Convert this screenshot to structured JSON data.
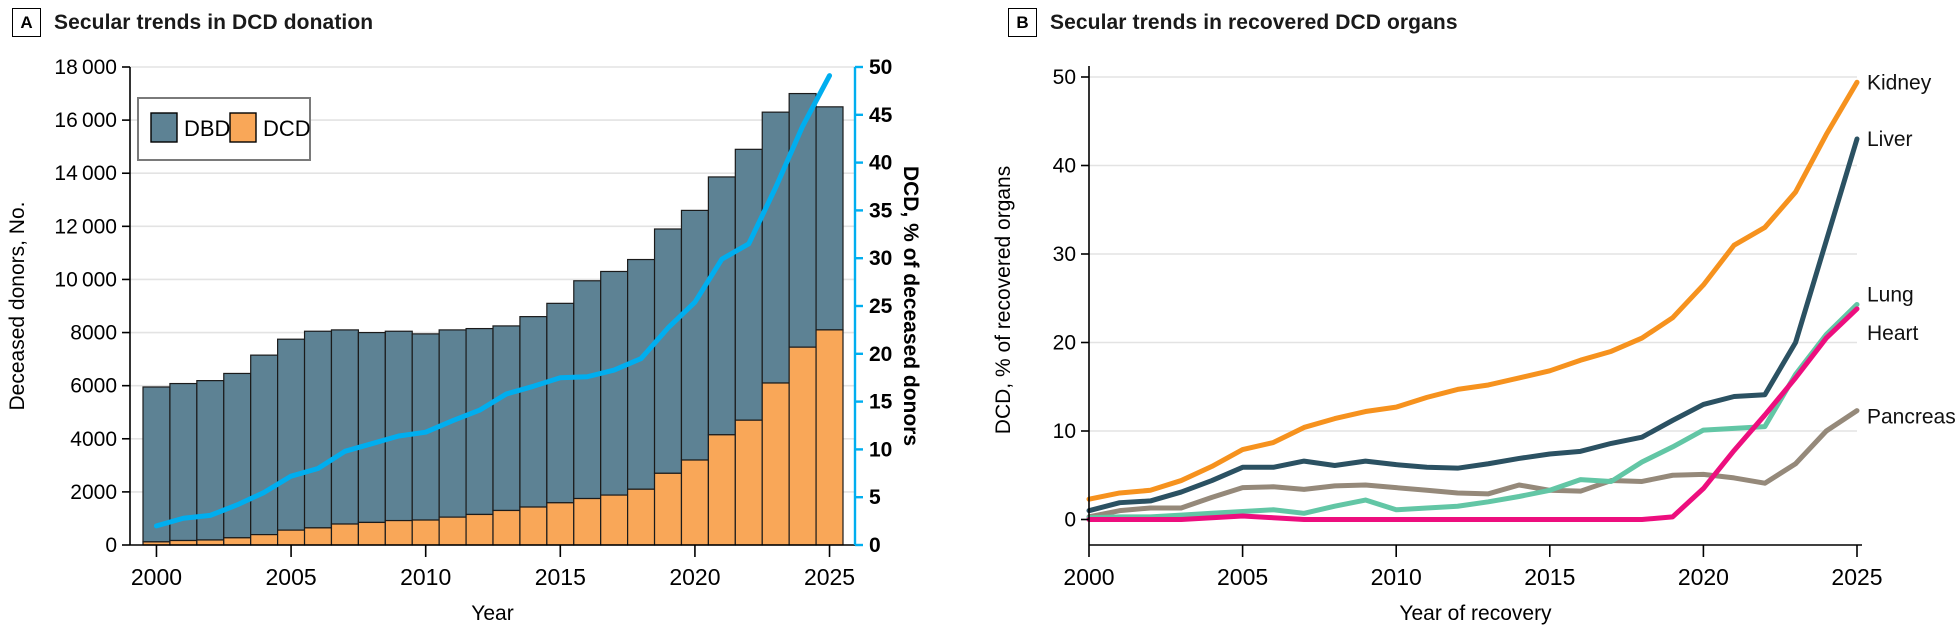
{
  "figure": {
    "panel_a": {
      "label": "A",
      "title": "Secular trends in DCD donation",
      "legend": [
        {
          "name": "DBD",
          "color": "#5d8294"
        },
        {
          "name": "DCD",
          "color": "#f9a758"
        }
      ],
      "x_label": "Year",
      "y_left_label": "Deceased donors, No.",
      "y_right_label": "DCD, % of deceased donors"
    },
    "panel_b": {
      "label": "B",
      "title": "Secular trends in recovered DCD organs",
      "x_label": "Year of recovery",
      "y_label": "DCD, % of recovered organs"
    }
  },
  "colors": {
    "dbd_bar": "#5d8294",
    "dcd_bar": "#f9a758",
    "pct_line": "#00aeef",
    "kidney": "#f6921e",
    "liver": "#2b5162",
    "lung": "#62c6a5",
    "heart": "#ed0e7e",
    "pancreas": "#95897a",
    "gridline": "#e3e3e3"
  },
  "chart_data": [
    {
      "panel": "A",
      "type": "bar",
      "subtype": "stacked-bar-with-line",
      "title": "Secular trends in DCD donation",
      "xlabel": "Year",
      "ylabel_left": "Deceased donors, No.",
      "ylabel_right": "DCD, % of deceased donors",
      "x": [
        2000,
        2001,
        2002,
        2003,
        2004,
        2005,
        2006,
        2007,
        2008,
        2009,
        2010,
        2011,
        2012,
        2013,
        2014,
        2015,
        2016,
        2017,
        2018,
        2019,
        2020,
        2021,
        2022,
        2023,
        2024,
        2025
      ],
      "x_ticks": [
        2000,
        2005,
        2010,
        2015,
        2020,
        2025
      ],
      "y_left_max": 18000,
      "y_left_step": 2000,
      "y_right_max": 50,
      "y_right_step": 5,
      "grid": true,
      "legend_position": "top-left-inside",
      "series": [
        {
          "name": "DCD",
          "type": "bar",
          "color": "#f9a758",
          "values": [
            118,
            169,
            189,
            271,
            391,
            560,
            645,
            790,
            850,
            920,
            940,
            1050,
            1150,
            1300,
            1430,
            1590,
            1750,
            1880,
            2100,
            2700,
            3200,
            4150,
            4700,
            6100,
            7450,
            8100
          ]
        },
        {
          "name": "DBD",
          "type": "bar",
          "color": "#5d8294",
          "values": [
            5832,
            5911,
            6001,
            6189,
            6759,
            7190,
            7405,
            7310,
            7150,
            7130,
            7010,
            7050,
            7000,
            6950,
            7170,
            7510,
            8200,
            8420,
            8650,
            9200,
            9400,
            9710,
            10200,
            10200,
            9550,
            8400
          ]
        },
        {
          "name": "DCD, % of deceased donors",
          "type": "line",
          "axis": "right",
          "color": "#00aeef",
          "values": [
            2.0,
            2.8,
            3.1,
            4.2,
            5.5,
            7.2,
            8.0,
            9.8,
            10.6,
            11.4,
            11.8,
            13.0,
            14.1,
            15.8,
            16.6,
            17.5,
            17.6,
            18.3,
            19.5,
            22.7,
            25.4,
            29.9,
            31.5,
            37.4,
            43.8,
            49.1
          ]
        }
      ]
    },
    {
      "panel": "B",
      "type": "line",
      "title": "Secular trends in recovered DCD organs",
      "xlabel": "Year of recovery",
      "ylabel": "DCD, % of recovered organs",
      "x": [
        2000,
        2001,
        2002,
        2003,
        2004,
        2005,
        2006,
        2007,
        2008,
        2009,
        2010,
        2011,
        2012,
        2013,
        2014,
        2015,
        2016,
        2017,
        2018,
        2019,
        2020,
        2021,
        2022,
        2023,
        2024,
        2025
      ],
      "x_ticks": [
        2000,
        2005,
        2010,
        2015,
        2020,
        2025
      ],
      "ylim": [
        0,
        50
      ],
      "y_step": 10,
      "grid": true,
      "legend_position": "right-end-labels",
      "series": [
        {
          "name": "Kidney",
          "color": "#f6921e",
          "values": [
            2.3,
            3.0,
            3.3,
            4.4,
            6.0,
            7.9,
            8.7,
            10.4,
            11.4,
            12.2,
            12.7,
            13.8,
            14.7,
            15.2,
            16.0,
            16.8,
            18.0,
            19.0,
            20.5,
            22.8,
            26.5,
            31.0,
            33.0,
            37.0,
            43.5,
            49.4
          ]
        },
        {
          "name": "Liver",
          "color": "#2b5162",
          "values": [
            1.0,
            1.9,
            2.1,
            3.1,
            4.4,
            5.9,
            5.9,
            6.6,
            6.1,
            6.6,
            6.2,
            5.9,
            5.8,
            6.3,
            6.9,
            7.4,
            7.7,
            8.6,
            9.3,
            11.2,
            13.0,
            13.9,
            14.1,
            20.0,
            31.5,
            43.0
          ]
        },
        {
          "name": "Pancreas",
          "color": "#95897a",
          "values": [
            0.3,
            1.0,
            1.3,
            1.3,
            2.5,
            3.6,
            3.7,
            3.4,
            3.8,
            3.9,
            3.6,
            3.3,
            3.0,
            2.9,
            3.9,
            3.3,
            3.2,
            4.4,
            4.3,
            5.0,
            5.1,
            4.7,
            4.1,
            6.3,
            10.0,
            12.3
          ]
        },
        {
          "name": "Lung",
          "color": "#62c6a5",
          "values": [
            0.2,
            0.3,
            0.3,
            0.5,
            0.7,
            0.9,
            1.1,
            0.7,
            1.5,
            2.2,
            1.1,
            1.3,
            1.5,
            2.0,
            2.6,
            3.3,
            4.5,
            4.3,
            6.5,
            8.2,
            10.1,
            10.3,
            10.5,
            16.4,
            20.9,
            24.3
          ]
        },
        {
          "name": "Heart",
          "color": "#ed0e7e",
          "values": [
            0,
            0,
            0,
            0,
            0.2,
            0.4,
            0.2,
            0,
            0,
            0,
            0,
            0,
            0,
            0,
            0,
            0,
            0,
            0,
            0,
            0.3,
            3.5,
            7.8,
            11.8,
            16.0,
            20.5,
            23.8
          ]
        }
      ]
    }
  ]
}
